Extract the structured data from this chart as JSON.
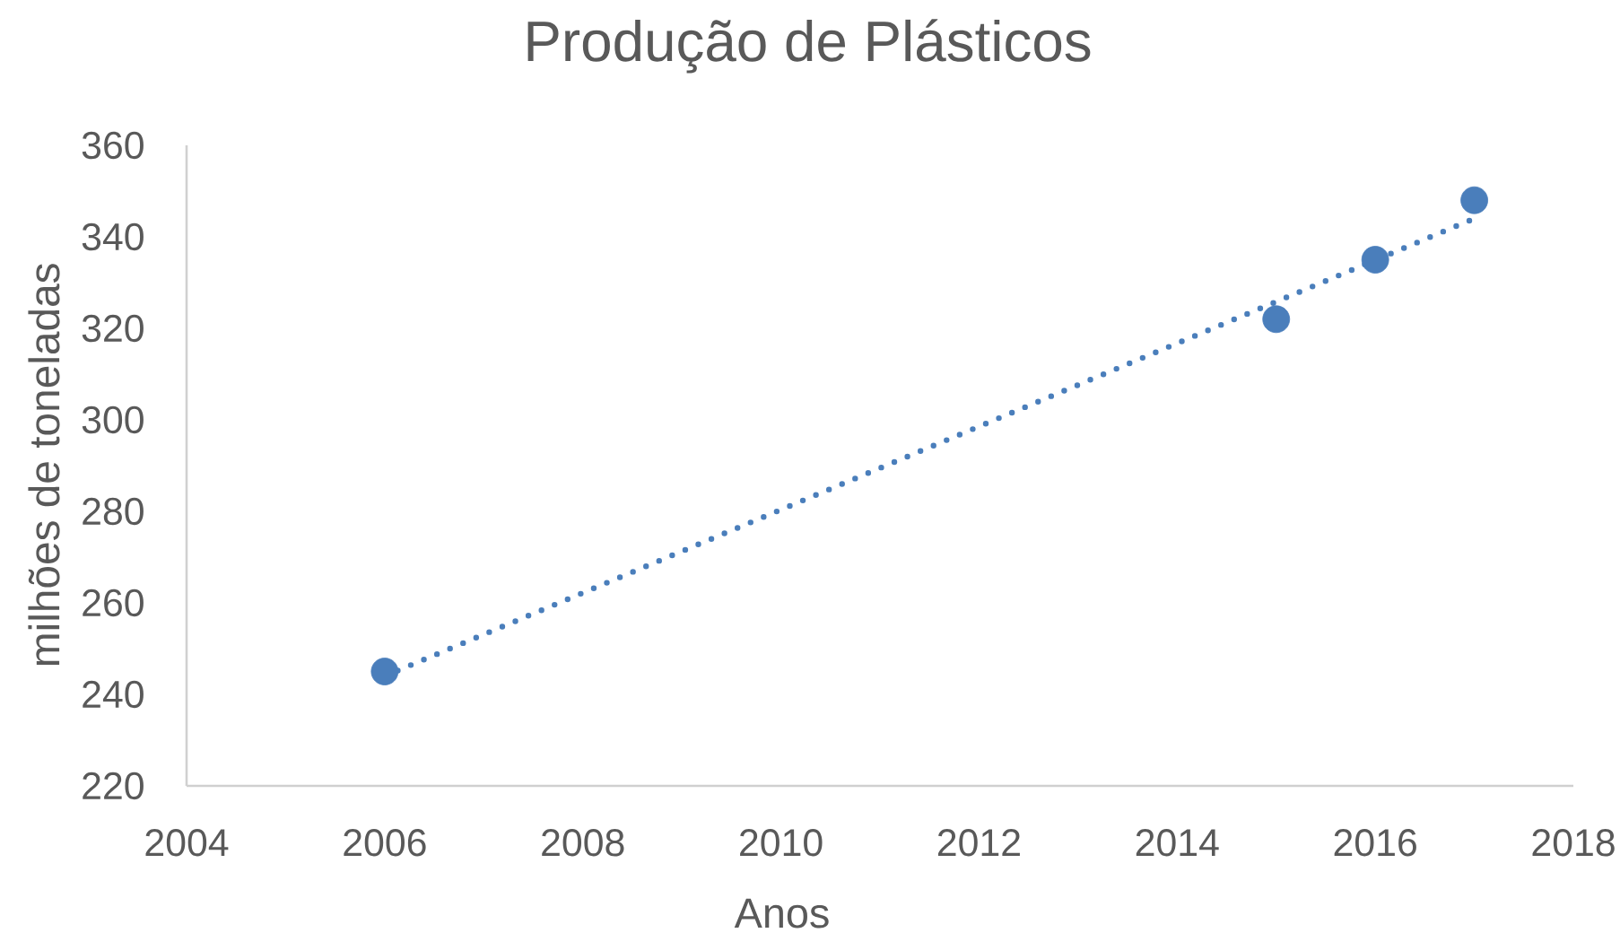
{
  "chart_data": {
    "type": "scatter",
    "title": "Produção de Plásticos",
    "xlabel": "Anos",
    "ylabel": "milhões de toneladas",
    "xlim": [
      2004,
      2018
    ],
    "xticks": [
      2004,
      2006,
      2008,
      2010,
      2012,
      2014,
      2016,
      2018
    ],
    "ylim": [
      220,
      360
    ],
    "yticks": [
      220,
      240,
      260,
      280,
      300,
      320,
      340,
      360
    ],
    "series": [
      {
        "x": [
          2006,
          2015,
          2016,
          2017
        ],
        "values": [
          245,
          322,
          335,
          348
        ],
        "color": "#4a7ebb",
        "marker": "circle"
      },
      {
        "type": "line",
        "x": [
          2006,
          2017
        ],
        "values": [
          244,
          344
        ],
        "color": "#4a7ebb",
        "line_style": "dotted",
        "marker": "none"
      }
    ]
  }
}
